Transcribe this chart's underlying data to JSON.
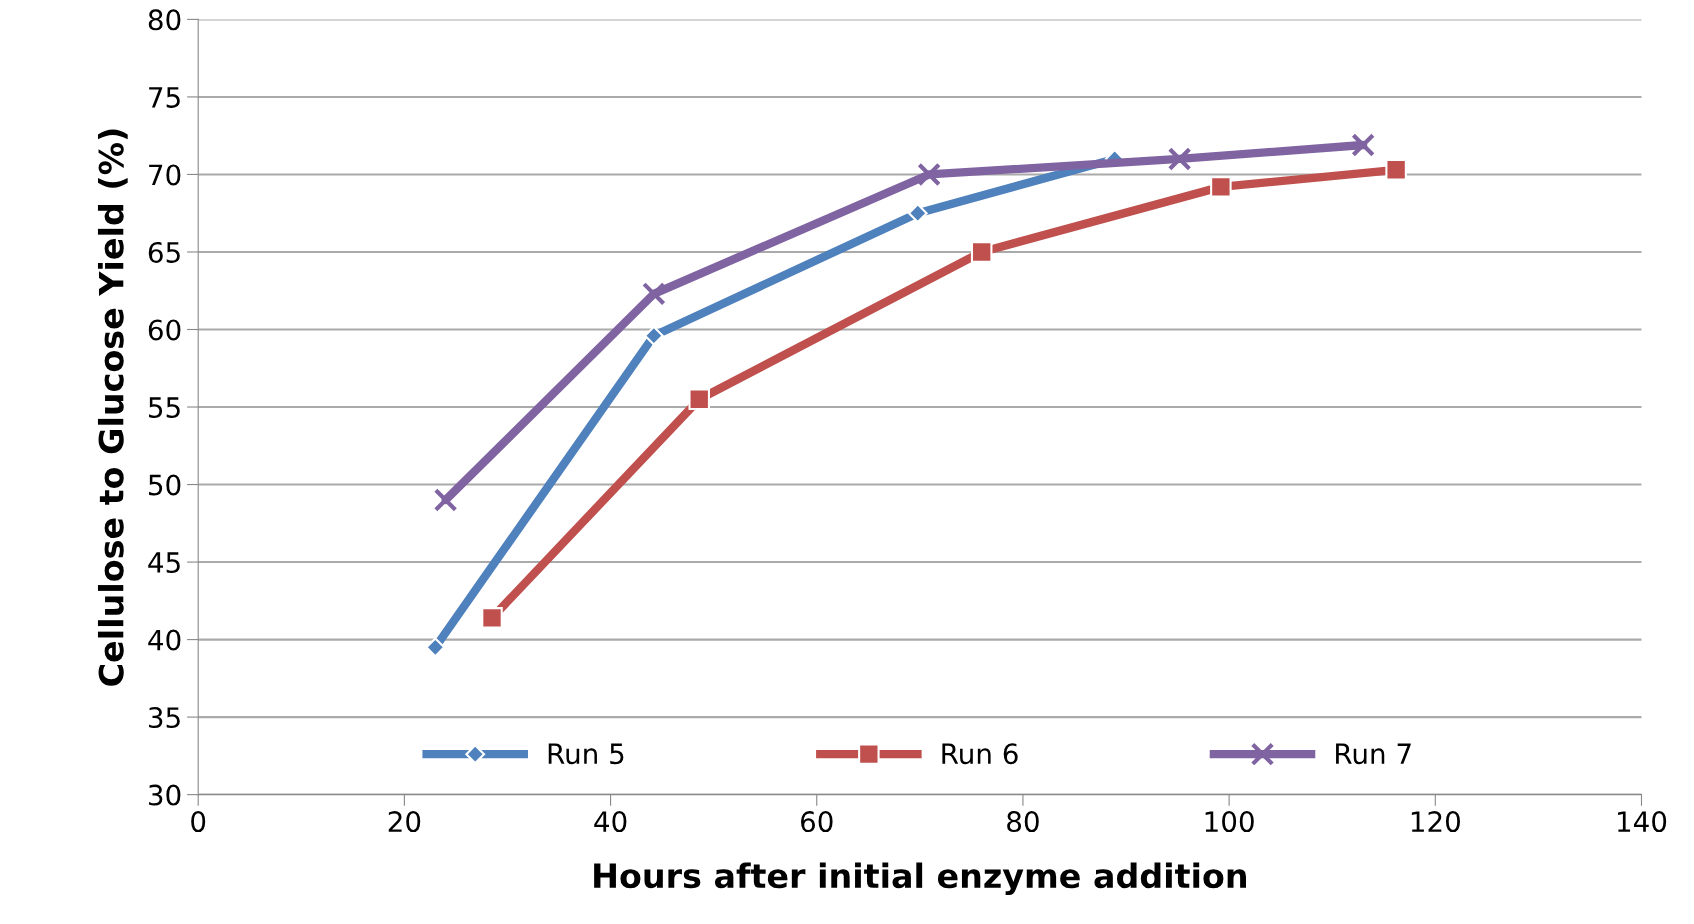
{
  "chart_data": {
    "type": "line",
    "xlabel": "Hours after initial enzyme addition",
    "ylabel": "Cellulose to Glucose Yield (%)",
    "xlim": [
      0,
      140
    ],
    "xticks": [
      0,
      20,
      40,
      60,
      80,
      100,
      120,
      140
    ],
    "ylim": [
      30,
      80
    ],
    "yticks": [
      30,
      35,
      40,
      45,
      50,
      55,
      60,
      65,
      70,
      75,
      80
    ],
    "grid": "y",
    "legend": "bottom",
    "series": [
      {
        "name": "Run 5",
        "color": "#4f81bd",
        "marker": "diamond",
        "x": [
          23,
          44.2,
          69.8,
          88.9
        ],
        "values": [
          39.5,
          59.6,
          67.5,
          71.0
        ]
      },
      {
        "name": "Run 6",
        "color": "#c0504d",
        "marker": "square",
        "x": [
          28.5,
          48.6,
          76,
          99.2,
          116.2
        ],
        "values": [
          41.4,
          55.5,
          65.0,
          69.2,
          70.3
        ]
      },
      {
        "name": "Run 7",
        "color": "#8064a2",
        "marker": "cross",
        "x": [
          24,
          44.2,
          70.9,
          95.2,
          113
        ],
        "values": [
          49.0,
          62.3,
          70.0,
          71.0,
          71.9
        ]
      }
    ]
  }
}
